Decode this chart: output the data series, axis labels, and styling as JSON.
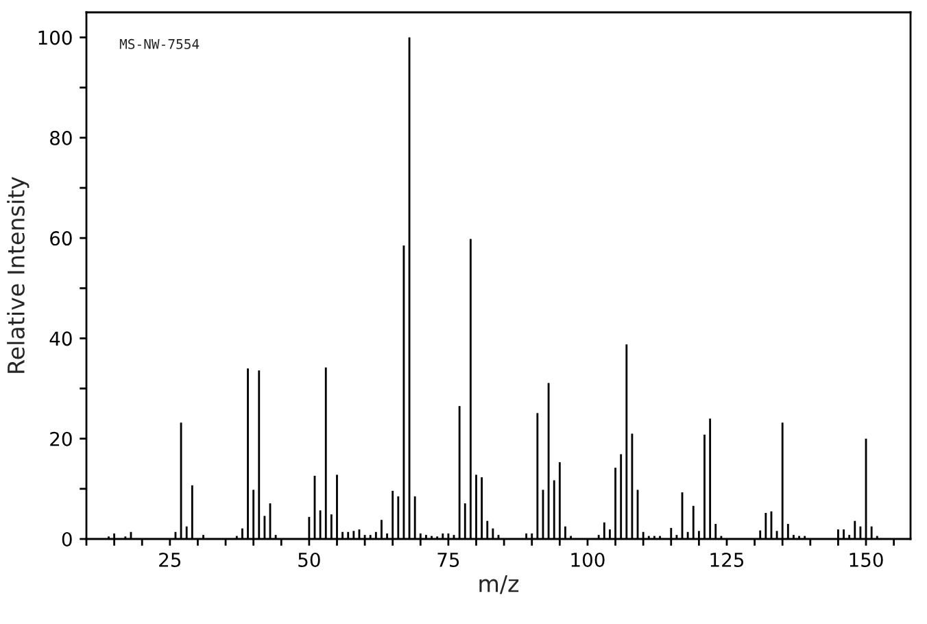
{
  "chart_data": {
    "type": "bar",
    "xlabel": "m/z",
    "ylabel": "Relative Intensity",
    "annotations": [
      "MS-NW-7554"
    ],
    "x": [
      14,
      15,
      17,
      18,
      26,
      27,
      28,
      29,
      31,
      37,
      38,
      39,
      40,
      41,
      42,
      43,
      44,
      50,
      51,
      52,
      53,
      54,
      55,
      56,
      57,
      58,
      59,
      60,
      61,
      62,
      63,
      64,
      65,
      66,
      67,
      68,
      69,
      70,
      71,
      72,
      73,
      74,
      75,
      76,
      77,
      78,
      79,
      80,
      81,
      82,
      83,
      84,
      89,
      90,
      91,
      92,
      93,
      94,
      95,
      96,
      97,
      102,
      103,
      104,
      105,
      106,
      107,
      108,
      109,
      110,
      111,
      112,
      113,
      115,
      116,
      117,
      118,
      119,
      120,
      121,
      122,
      123,
      124,
      131,
      132,
      133,
      134,
      135,
      136,
      137,
      138,
      139,
      145,
      146,
      147,
      148,
      149,
      150,
      151,
      152
    ],
    "values": [
      0.5,
      1.1,
      0.5,
      1.4,
      1.4,
      23.2,
      2.5,
      10.7,
      0.8,
      0.6,
      2.1,
      34.0,
      9.8,
      33.6,
      4.6,
      7.1,
      0.8,
      4.4,
      12.6,
      5.7,
      34.2,
      4.9,
      12.8,
      1.4,
      1.4,
      1.6,
      1.9,
      0.8,
      0.8,
      1.4,
      3.8,
      1.1,
      9.6,
      8.5,
      58.5,
      100,
      8.5,
      1.1,
      0.8,
      0.6,
      0.5,
      1.1,
      1.1,
      0.8,
      26.5,
      7.1,
      59.8,
      12.8,
      12.3,
      3.6,
      2.1,
      0.8,
      1.1,
      1.1,
      25.1,
      9.8,
      31.1,
      11.7,
      15.3,
      2.5,
      0.6,
      0.8,
      3.3,
      1.9,
      14.2,
      16.9,
      38.8,
      21.0,
      9.8,
      1.4,
      0.6,
      0.6,
      0.6,
      2.2,
      0.8,
      9.3,
      1.4,
      6.6,
      1.6,
      20.8,
      24.0,
      3.0,
      0.6,
      1.7,
      5.2,
      5.5,
      1.6,
      23.2,
      3.0,
      0.8,
      0.6,
      0.6,
      1.9,
      1.9,
      0.8,
      3.6,
      2.5,
      20.0,
      2.5,
      0.6
    ],
    "color": "#000000",
    "xlim": [
      10,
      158
    ],
    "xticks": [
      {
        "value": 10,
        "label": null
      },
      {
        "value": 15,
        "label": null
      },
      {
        "value": 20,
        "label": null
      },
      25,
      {
        "value": 30,
        "label": null
      },
      {
        "value": 35,
        "label": null
      },
      {
        "value": 40,
        "label": null
      },
      {
        "value": 45,
        "label": null
      },
      50,
      {
        "value": 55,
        "label": null
      },
      {
        "value": 60,
        "label": null
      },
      {
        "value": 65,
        "label": null
      },
      {
        "value": 70,
        "label": null
      },
      75,
      {
        "value": 80,
        "label": null
      },
      {
        "value": 85,
        "label": null
      },
      {
        "value": 90,
        "label": null
      },
      {
        "value": 95,
        "label": null
      },
      100,
      {
        "value": 105,
        "label": null
      },
      {
        "value": 110,
        "label": null
      },
      {
        "value": 115,
        "label": null
      },
      {
        "value": 120,
        "label": null
      },
      125,
      {
        "value": 130,
        "label": null
      },
      {
        "value": 135,
        "label": null
      },
      {
        "value": 140,
        "label": null
      },
      {
        "value": 145,
        "label": null
      },
      150,
      {
        "value": 155,
        "label": null
      }
    ],
    "ylim": [
      0,
      105
    ],
    "yticks": [
      0,
      {
        "value": 10,
        "label": null
      },
      20,
      {
        "value": 30,
        "label": null
      },
      40,
      {
        "value": 50,
        "label": null
      },
      60,
      {
        "value": 70,
        "label": null
      },
      80,
      {
        "value": 90,
        "label": null
      },
      100
    ],
    "grid": false
  }
}
